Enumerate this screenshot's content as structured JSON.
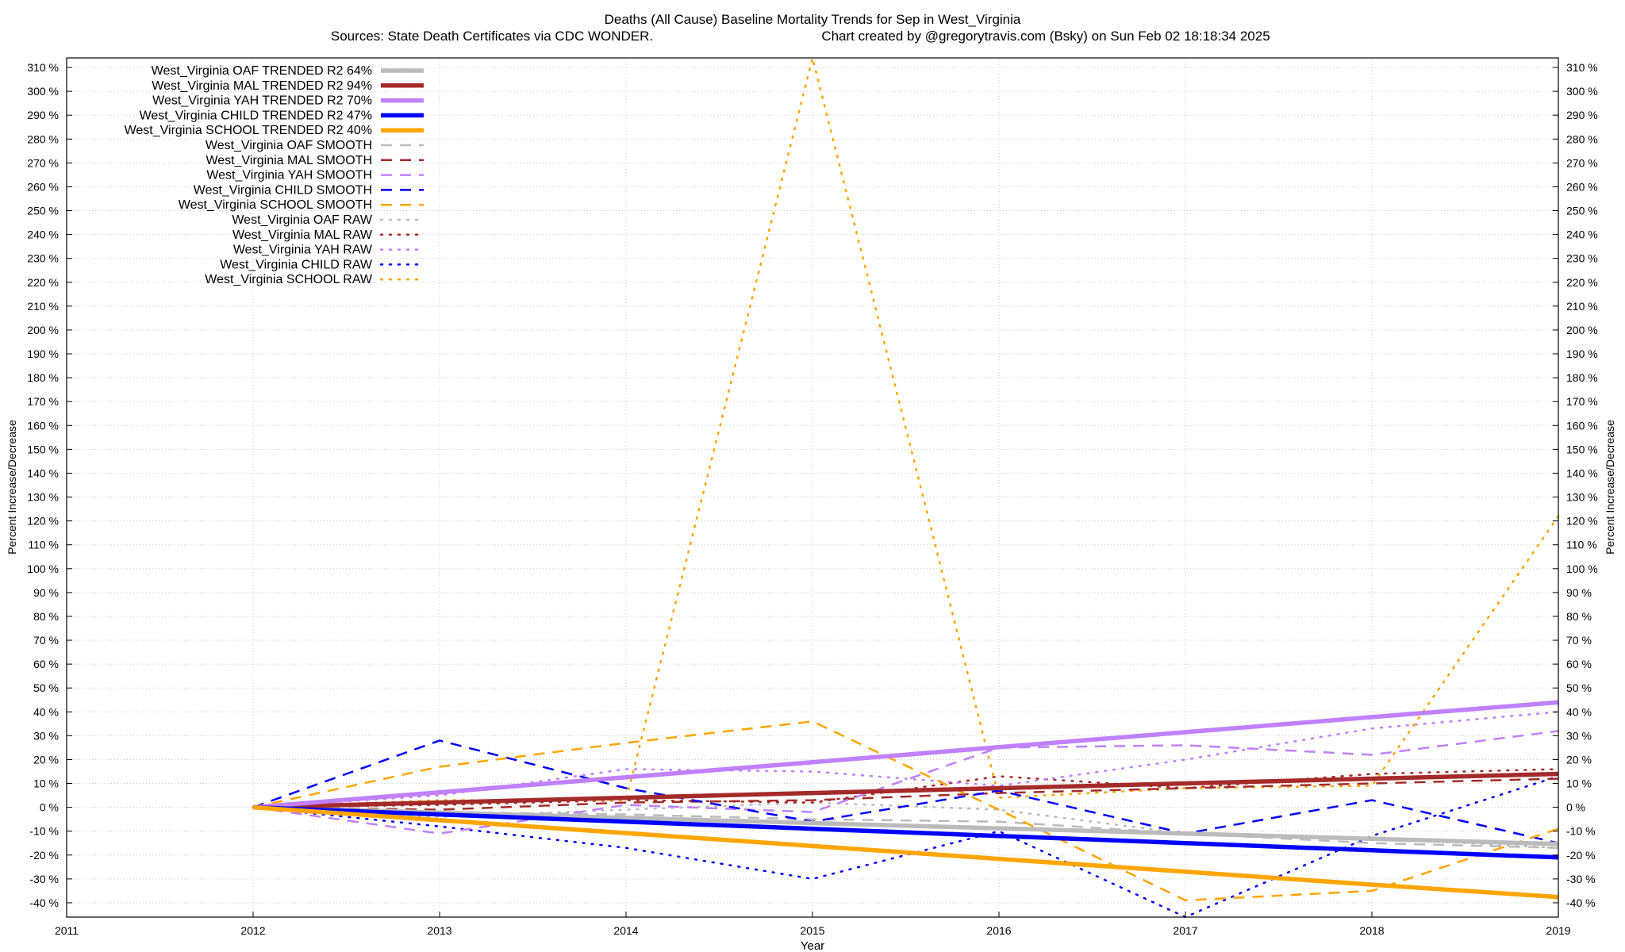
{
  "chart_data": {
    "type": "line",
    "title": "Deaths (All Cause)  Baseline Mortality Trends for Sep in West_Virginia",
    "subtitle_left": "Sources: State Death Certificates via CDC WONDER.",
    "subtitle_right": "Chart created by @gregorytravis.com (Bsky) on Sun Feb 02 18:18:34 2025",
    "xlabel": "Year",
    "ylabel_left": "Percent Increase/Decrease",
    "ylabel_right": "Percent Increase/Decrease",
    "xlim": [
      2011,
      2019
    ],
    "ylim": [
      -46,
      314
    ],
    "x_ticks": [
      2011,
      2012,
      2013,
      2014,
      2015,
      2016,
      2017,
      2018,
      2019
    ],
    "y_ticks": [
      -40,
      -30,
      -20,
      -10,
      0,
      10,
      20,
      30,
      40,
      50,
      60,
      70,
      80,
      90,
      100,
      110,
      120,
      130,
      140,
      150,
      160,
      170,
      180,
      190,
      200,
      210,
      220,
      230,
      240,
      250,
      260,
      270,
      280,
      290,
      300,
      310
    ],
    "y_tick_suffix": " %",
    "grid": true,
    "legend_position": "top-left",
    "x": [
      2012,
      2013,
      2014,
      2015,
      2016,
      2017,
      2018,
      2019
    ],
    "series": [
      {
        "name": "West_Virginia OAF TRENDED R2  64%",
        "style": "trend",
        "color": "#bbbbbb",
        "values": [
          0,
          -2.2,
          -4.4,
          -6.6,
          -8.8,
          -11,
          -13.2,
          -15.4
        ]
      },
      {
        "name": "West_Virginia MAL TRENDED R2  94%",
        "style": "trend",
        "color": "#a52a2a",
        "values": [
          0,
          2,
          4,
          6,
          8,
          10,
          12,
          14
        ]
      },
      {
        "name": "West_Virginia YAH TRENDED R2  70%",
        "style": "trend",
        "color": "#c080ff",
        "values": [
          0,
          6.3,
          12.6,
          18.9,
          25.2,
          31.5,
          37.8,
          44
        ]
      },
      {
        "name": "West_Virginia CHILD TRENDED R2  47%",
        "style": "trend",
        "color": "#0000ff",
        "values": [
          0,
          -3,
          -6,
          -9,
          -12,
          -15,
          -18,
          -21
        ]
      },
      {
        "name": "West_Virginia SCHOOL TRENDED R2  40%",
        "style": "trend",
        "color": "#ffa500",
        "values": [
          0,
          -5.4,
          -10.8,
          -16.2,
          -21.6,
          -27,
          -32.4,
          -37.6
        ]
      },
      {
        "name": "West_Virginia OAF SMOOTH",
        "style": "smooth",
        "color": "#bbbbbb",
        "values": [
          0,
          -2,
          -3,
          -5,
          -6,
          -11,
          -15,
          -17
        ]
      },
      {
        "name": "West_Virginia MAL SMOOTH",
        "style": "smooth",
        "color": "#a52a2a",
        "values": [
          0,
          -1,
          2,
          3,
          6,
          8,
          10,
          12
        ]
      },
      {
        "name": "West_Virginia YAH SMOOTH",
        "style": "smooth",
        "color": "#c080ff",
        "values": [
          0,
          -11,
          1,
          -2,
          25,
          26,
          22,
          32
        ]
      },
      {
        "name": "West_Virginia CHILD SMOOTH",
        "style": "smooth",
        "color": "#0000ff",
        "values": [
          0,
          28,
          8,
          -6,
          7,
          -11,
          3,
          -15
        ]
      },
      {
        "name": "West_Virginia SCHOOL SMOOTH",
        "style": "smooth",
        "color": "#ffa500",
        "values": [
          0,
          17,
          27,
          36,
          -1,
          -39,
          -35,
          -9
        ]
      },
      {
        "name": "West_Virginia OAF RAW",
        "style": "raw",
        "color": "#bbbbbb",
        "values": [
          0,
          -4,
          -1,
          2,
          -1,
          -11,
          -13,
          -17
        ]
      },
      {
        "name": "West_Virginia MAL RAW",
        "style": "raw",
        "color": "#a52a2a",
        "values": [
          0,
          1,
          3,
          2,
          13,
          8,
          14,
          16
        ]
      },
      {
        "name": "West_Virginia YAH RAW",
        "style": "raw",
        "color": "#c080ff",
        "values": [
          0,
          5,
          16,
          15,
          9,
          20,
          33,
          40
        ]
      },
      {
        "name": "West_Virginia CHILD RAW",
        "style": "raw",
        "color": "#0000ff",
        "values": [
          0,
          -8,
          -17,
          -30,
          -10,
          -46,
          -12,
          13
        ]
      },
      {
        "name": "West_Virginia SCHOOL RAW",
        "style": "raw",
        "color": "#ffa500",
        "values": [
          0,
          3,
          3,
          314,
          4,
          8,
          9,
          122
        ]
      }
    ]
  }
}
